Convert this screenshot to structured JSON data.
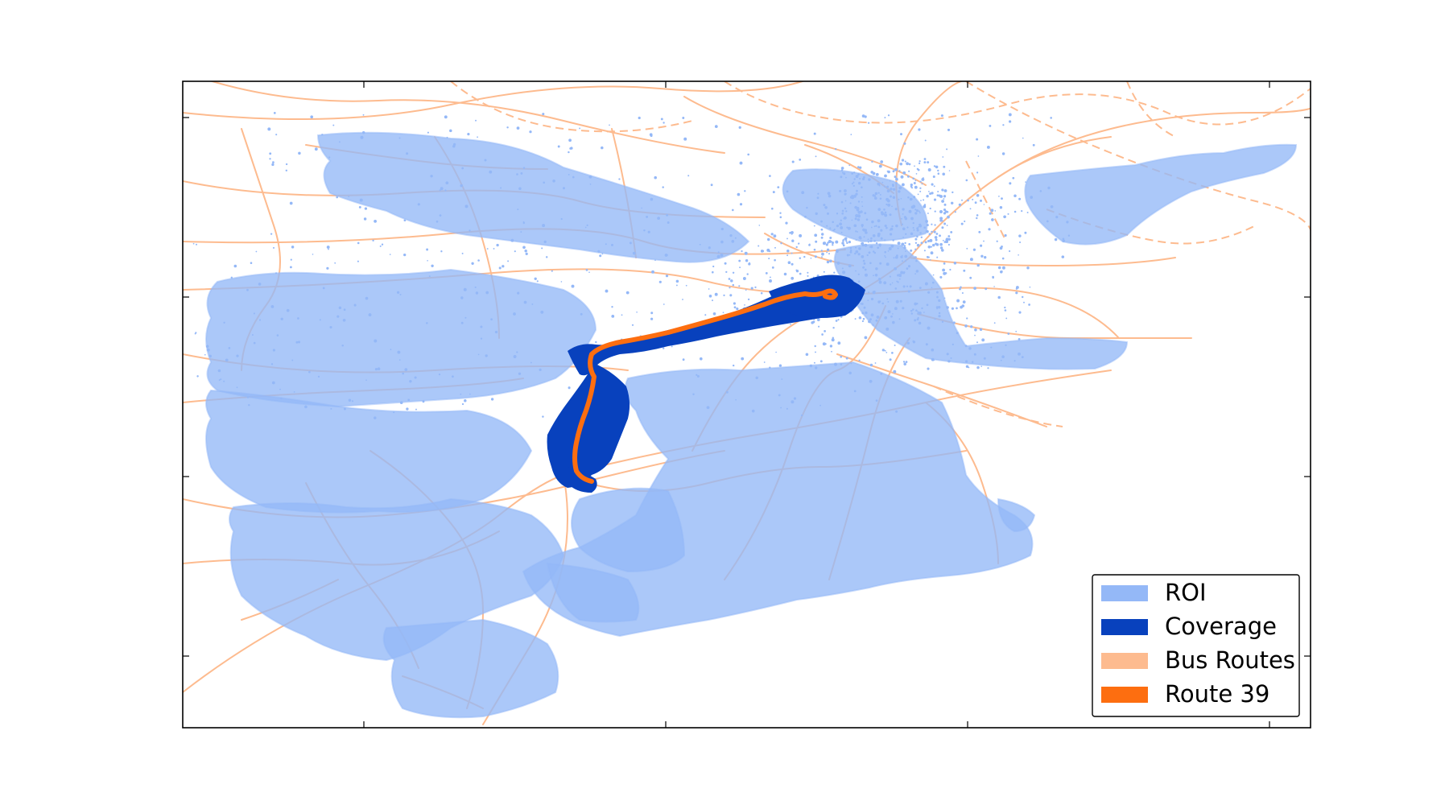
{
  "figure": {
    "title": "",
    "colors": {
      "roi": "#94b8f7",
      "coverage": "#0841bd",
      "bus_routes": "#fdbb8f",
      "route_39": "#fd6e10",
      "frame": "#000000",
      "background": "#ffffff"
    },
    "legend": {
      "placement": "lower-right",
      "items": [
        {
          "key": "roi",
          "label": "ROI",
          "color": "#94b8f7"
        },
        {
          "key": "coverage",
          "label": "Coverage",
          "color": "#0841bd"
        },
        {
          "key": "bus_routes",
          "label": "Bus Routes",
          "color": "#fdbb8f"
        },
        {
          "key": "route_39",
          "label": "Route 39",
          "color": "#fd6e10"
        }
      ]
    },
    "axes": {
      "tick_labels_shown": false,
      "grid": false
    }
  }
}
